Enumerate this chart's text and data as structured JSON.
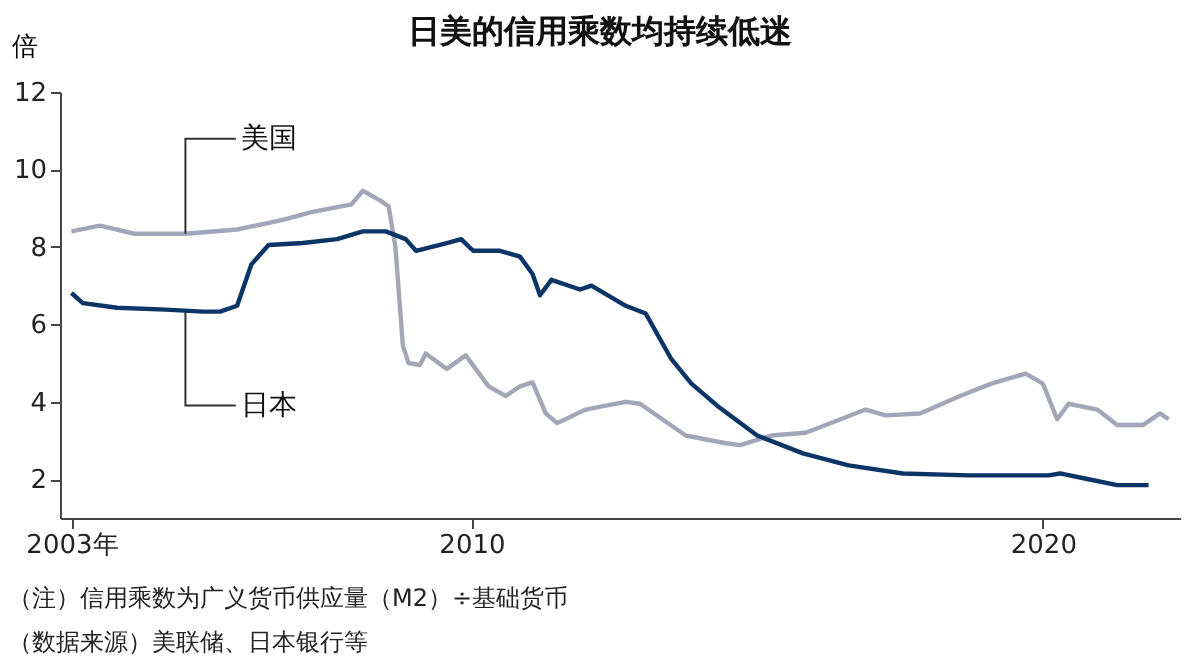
{
  "chart_data": {
    "type": "line",
    "title": "日美的信用乘数均持续低迷",
    "ylabel": "倍",
    "xlim": [
      2002.8,
      2022.4
    ],
    "xticks": [
      {
        "value": 2003,
        "label": "2003年"
      },
      2010,
      2020
    ],
    "ylim": [
      1,
      12
    ],
    "yticks": [
      2,
      4,
      6,
      8,
      10,
      12
    ],
    "grid": false,
    "legend": false,
    "marker": "none",
    "line_style": "solid",
    "annotations": [
      "（注）信用乘数为广义货币供应量（M2）÷基础货币",
      "（数据来源）美联储、日本银行等"
    ],
    "series": [
      {
        "name": "美国",
        "color": "#a3a6b8",
        "x": [
          2003.0,
          2003.5,
          2004.1,
          2005.0,
          2005.9,
          2006.7,
          2007.2,
          2007.9,
          2008.1,
          2008.4,
          2008.55,
          2008.67,
          2008.8,
          2008.9,
          2009.1,
          2009.2,
          2009.57,
          2009.9,
          2010.3,
          2010.6,
          2010.85,
          2011.07,
          2011.3,
          2011.5,
          2012.0,
          2012.35,
          2012.7,
          2012.95,
          2013.75,
          2014.45,
          2014.7,
          2015.25,
          2015.85,
          2016.2,
          2016.9,
          2017.25,
          2017.85,
          2018.55,
          2019.1,
          2019.7,
          2020.0,
          2020.25,
          2020.45,
          2020.95,
          2021.3,
          2021.75,
          2022.05,
          2022.2
        ],
        "values": [
          8.4,
          8.55,
          8.34,
          8.34,
          8.45,
          8.7,
          8.9,
          9.1,
          9.45,
          9.2,
          9.05,
          8.0,
          5.45,
          5.0,
          4.95,
          5.25,
          4.85,
          5.2,
          4.4,
          4.15,
          4.4,
          4.5,
          3.7,
          3.45,
          3.8,
          3.9,
          4.0,
          3.95,
          3.13,
          2.93,
          2.88,
          3.13,
          3.2,
          3.4,
          3.8,
          3.65,
          3.7,
          4.15,
          4.47,
          4.73,
          4.47,
          3.55,
          3.95,
          3.8,
          3.4,
          3.4,
          3.7,
          3.55
        ]
      },
      {
        "name": "日本",
        "color": "#0b3566",
        "x": [
          2003.0,
          2003.2,
          2003.8,
          2004.65,
          2005.3,
          2005.6,
          2005.9,
          2006.15,
          2006.45,
          2007.05,
          2007.65,
          2008.1,
          2008.5,
          2008.85,
          2009.03,
          2009.57,
          2009.82,
          2010.03,
          2010.5,
          2010.85,
          2011.07,
          2011.2,
          2011.4,
          2011.9,
          2012.1,
          2012.7,
          2013.05,
          2013.5,
          2013.85,
          2014.3,
          2015.0,
          2015.8,
          2016.6,
          2017.55,
          2018.7,
          2020.1,
          2020.3,
          2020.8,
          2021.3,
          2021.85
        ],
        "values": [
          6.81,
          6.55,
          6.43,
          6.38,
          6.33,
          6.33,
          6.48,
          7.55,
          8.05,
          8.1,
          8.2,
          8.4,
          8.4,
          8.2,
          7.9,
          8.1,
          8.2,
          7.9,
          7.9,
          7.75,
          7.3,
          6.75,
          7.15,
          6.9,
          7.0,
          6.48,
          6.28,
          5.1,
          4.47,
          3.9,
          3.13,
          2.67,
          2.36,
          2.15,
          2.1,
          2.1,
          2.15,
          2.0,
          1.85,
          1.85
        ]
      }
    ]
  }
}
